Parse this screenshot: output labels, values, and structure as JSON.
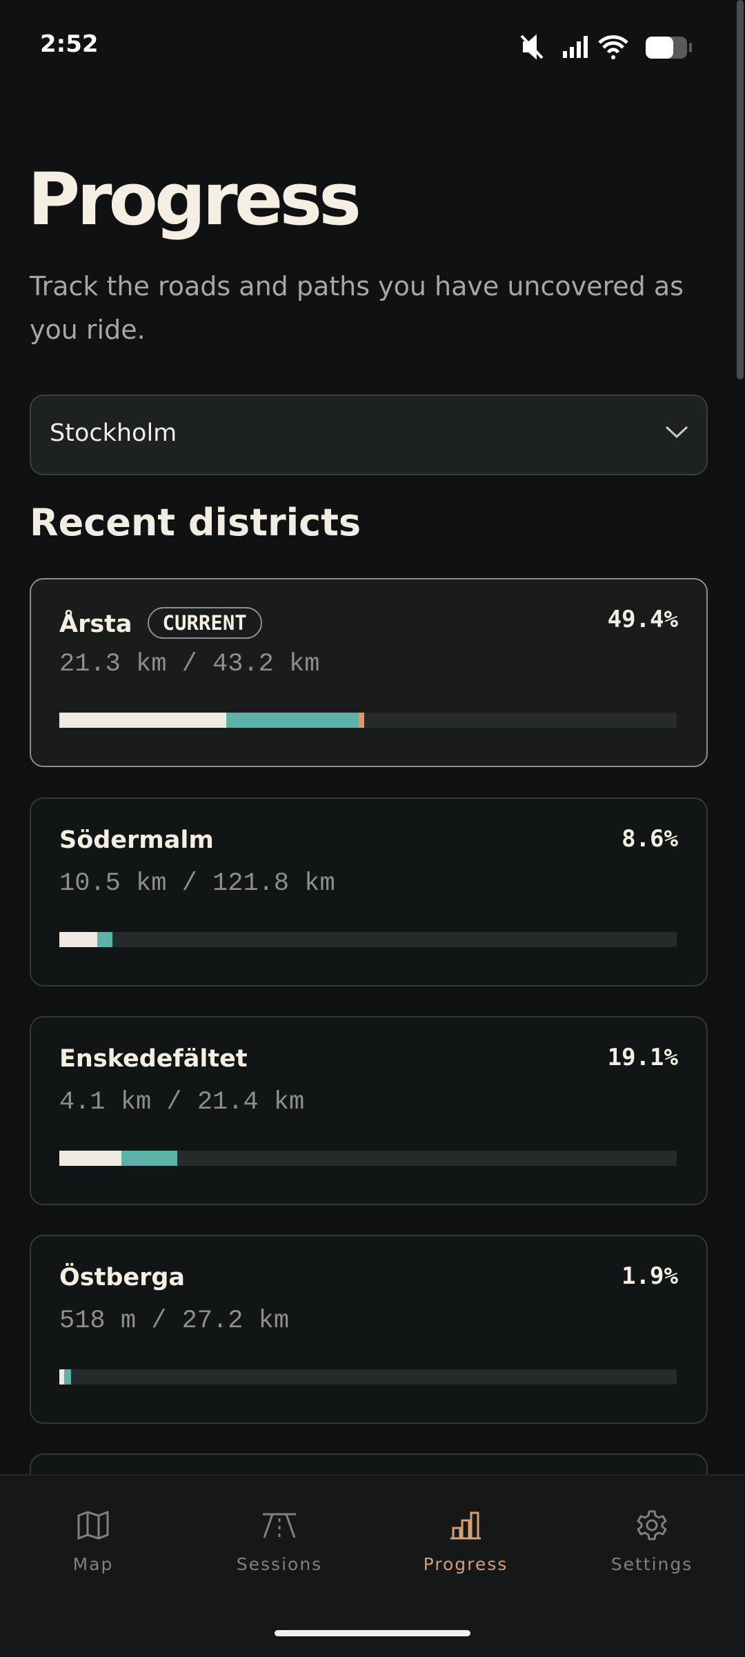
{
  "status_bar": {
    "time": "2:52"
  },
  "header": {
    "title": "Progress",
    "subtitle": "Track the roads and paths you have uncovered as you ride."
  },
  "city_select": {
    "value": "Stockholm"
  },
  "section": {
    "title": "Recent districts"
  },
  "districts": [
    {
      "name": "Årsta",
      "badge": "CURRENT",
      "distance": "21.3 km / 43.2 km",
      "percent": "49.4%"
    },
    {
      "name": "Södermalm",
      "distance": "10.5 km / 121.8 km",
      "percent": "8.6%"
    },
    {
      "name": "Enskedefältet",
      "distance": "4.1 km / 21.4 km",
      "percent": "19.1%"
    },
    {
      "name": "Östberga",
      "distance": "518 m / 27.2 km",
      "percent": "1.9%"
    }
  ],
  "nav": [
    {
      "label": "Map"
    },
    {
      "label": "Sessions"
    },
    {
      "label": "Progress"
    },
    {
      "label": "Settings"
    }
  ]
}
